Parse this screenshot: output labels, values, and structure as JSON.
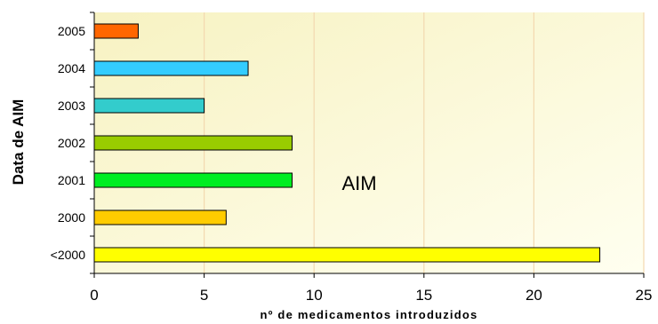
{
  "chart_data": {
    "type": "bar",
    "orientation": "horizontal",
    "categories": [
      "2005",
      "2004",
      "2003",
      "2002",
      "2001",
      "2000",
      "<2000"
    ],
    "values": [
      2,
      7,
      5,
      9,
      9,
      6,
      23
    ],
    "bar_colors": [
      "#FF6600",
      "#33CCFF",
      "#33CCCC",
      "#99CC00",
      "#00EE22",
      "#FFCC00",
      "#FFFF00"
    ],
    "xlabel": "nº de medicamentos introduzidos",
    "ylabel": "Data de AIM",
    "xlim": [
      0,
      25
    ],
    "xticks": [
      "0",
      "5",
      "10",
      "15",
      "20",
      "25"
    ],
    "annotation": "AIM",
    "grid": "vertical",
    "plot_background": "#FFFFE0"
  }
}
